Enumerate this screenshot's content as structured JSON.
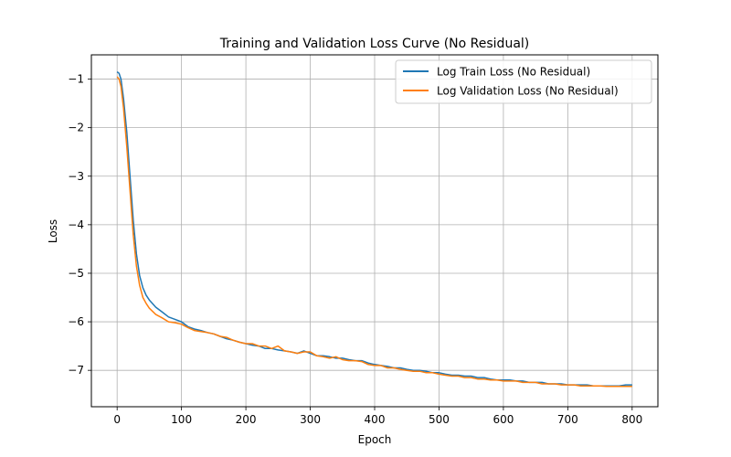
{
  "chart_data": {
    "type": "line",
    "title": "Training and Validation Loss Curve (No Residual)",
    "xlabel": "Epoch",
    "ylabel": "Loss",
    "xlim": [
      -40,
      840
    ],
    "ylim": [
      -7.75,
      -0.5
    ],
    "xticks": [
      0,
      100,
      200,
      300,
      400,
      500,
      600,
      700,
      800
    ],
    "xtick_labels": [
      "0",
      "100",
      "200",
      "300",
      "400",
      "500",
      "600",
      "700",
      "800"
    ],
    "yticks": [
      -1,
      -2,
      -3,
      -4,
      -5,
      -6,
      -7
    ],
    "ytick_labels": [
      "−1",
      "−2",
      "−3",
      "−4",
      "−5",
      "−6",
      "−7"
    ],
    "grid": true,
    "legend_position": "top-right",
    "series": [
      {
        "name": "Log Train Loss (No Residual)",
        "color": "#1f77b4",
        "x": [
          0,
          3,
          6,
          10,
          15,
          20,
          25,
          30,
          35,
          40,
          45,
          50,
          60,
          70,
          80,
          90,
          100,
          110,
          120,
          130,
          140,
          150,
          160,
          170,
          180,
          190,
          200,
          210,
          220,
          230,
          240,
          250,
          260,
          270,
          280,
          290,
          300,
          310,
          320,
          330,
          340,
          350,
          360,
          370,
          380,
          390,
          400,
          410,
          420,
          430,
          440,
          450,
          460,
          470,
          480,
          490,
          500,
          510,
          520,
          530,
          540,
          550,
          560,
          570,
          580,
          590,
          600,
          610,
          620,
          630,
          640,
          650,
          660,
          670,
          680,
          690,
          700,
          710,
          720,
          730,
          740,
          750,
          760,
          770,
          780,
          790,
          800
        ],
        "y": [
          -0.85,
          -0.88,
          -1.0,
          -1.4,
          -2.1,
          -3.0,
          -3.9,
          -4.6,
          -5.05,
          -5.3,
          -5.45,
          -5.55,
          -5.7,
          -5.8,
          -5.9,
          -5.95,
          -6.0,
          -6.1,
          -6.15,
          -6.18,
          -6.22,
          -6.25,
          -6.3,
          -6.35,
          -6.38,
          -6.42,
          -6.45,
          -6.48,
          -6.5,
          -6.55,
          -6.55,
          -6.58,
          -6.6,
          -6.62,
          -6.65,
          -6.6,
          -6.65,
          -6.7,
          -6.7,
          -6.72,
          -6.75,
          -6.75,
          -6.78,
          -6.8,
          -6.8,
          -6.85,
          -6.88,
          -6.9,
          -6.92,
          -6.95,
          -6.95,
          -6.98,
          -7.0,
          -7.0,
          -7.02,
          -7.05,
          -7.05,
          -7.08,
          -7.1,
          -7.1,
          -7.12,
          -7.12,
          -7.15,
          -7.15,
          -7.18,
          -7.2,
          -7.2,
          -7.2,
          -7.22,
          -7.22,
          -7.25,
          -7.25,
          -7.25,
          -7.28,
          -7.28,
          -7.28,
          -7.3,
          -7.3,
          -7.3,
          -7.3,
          -7.32,
          -7.32,
          -7.32,
          -7.32,
          -7.32,
          -7.3,
          -7.3
        ]
      },
      {
        "name": "Log Validation Loss (No Residual)",
        "color": "#ff7f0e",
        "x": [
          0,
          3,
          6,
          10,
          15,
          20,
          25,
          30,
          35,
          40,
          45,
          50,
          60,
          70,
          80,
          90,
          100,
          110,
          120,
          130,
          140,
          150,
          160,
          170,
          180,
          190,
          200,
          210,
          220,
          230,
          240,
          250,
          260,
          270,
          280,
          290,
          300,
          310,
          320,
          330,
          340,
          350,
          360,
          370,
          380,
          390,
          400,
          410,
          420,
          430,
          440,
          450,
          460,
          470,
          480,
          490,
          500,
          510,
          520,
          530,
          540,
          550,
          560,
          570,
          580,
          590,
          600,
          610,
          620,
          630,
          640,
          650,
          660,
          670,
          680,
          690,
          700,
          710,
          720,
          730,
          740,
          750,
          760,
          770,
          780,
          790,
          800
        ],
        "y": [
          -0.95,
          -1.0,
          -1.15,
          -1.6,
          -2.4,
          -3.3,
          -4.2,
          -4.85,
          -5.25,
          -5.5,
          -5.62,
          -5.72,
          -5.85,
          -5.92,
          -6.0,
          -6.02,
          -6.05,
          -6.12,
          -6.18,
          -6.2,
          -6.22,
          -6.25,
          -6.3,
          -6.32,
          -6.38,
          -6.42,
          -6.45,
          -6.45,
          -6.5,
          -6.5,
          -6.55,
          -6.5,
          -6.6,
          -6.62,
          -6.65,
          -6.62,
          -6.62,
          -6.7,
          -6.72,
          -6.75,
          -6.72,
          -6.78,
          -6.8,
          -6.8,
          -6.82,
          -6.88,
          -6.9,
          -6.9,
          -6.95,
          -6.95,
          -6.98,
          -7.0,
          -7.02,
          -7.02,
          -7.05,
          -7.05,
          -7.08,
          -7.1,
          -7.12,
          -7.12,
          -7.15,
          -7.15,
          -7.18,
          -7.18,
          -7.2,
          -7.2,
          -7.22,
          -7.22,
          -7.22,
          -7.25,
          -7.25,
          -7.25,
          -7.28,
          -7.28,
          -7.28,
          -7.3,
          -7.3,
          -7.3,
          -7.32,
          -7.32,
          -7.32,
          -7.32,
          -7.33,
          -7.33,
          -7.33,
          -7.33,
          -7.33
        ]
      }
    ]
  }
}
